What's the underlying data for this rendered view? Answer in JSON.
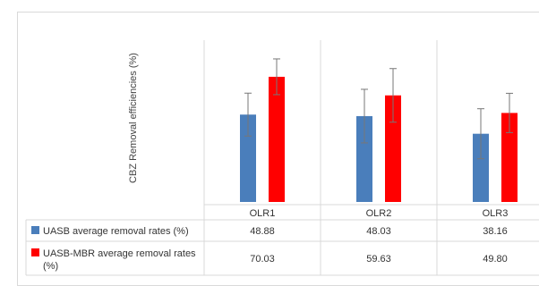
{
  "chart_data": {
    "type": "bar",
    "ylabel": "CBZ Removal efficiencies (%)",
    "categories": [
      "OLR1",
      "OLR2",
      "OLR3"
    ],
    "ylim": [
      0,
      100
    ],
    "grid": false,
    "legend": "table-rows",
    "series": [
      {
        "name": "UASB average removal rates (%)",
        "color": "#4a7ebb",
        "values": [
          48.88,
          48.03,
          38.16
        ],
        "value_labels": [
          "48.88",
          "48.03",
          "38.16"
        ],
        "errors": [
          12,
          15,
          14
        ]
      },
      {
        "name": "UASB-MBR average removal rates (%)",
        "color": "#ff0000",
        "values": [
          70.03,
          59.63,
          49.8
        ],
        "value_labels": [
          "70.03",
          "59.63",
          "49.80"
        ],
        "errors": [
          10,
          15,
          11
        ]
      }
    ]
  }
}
